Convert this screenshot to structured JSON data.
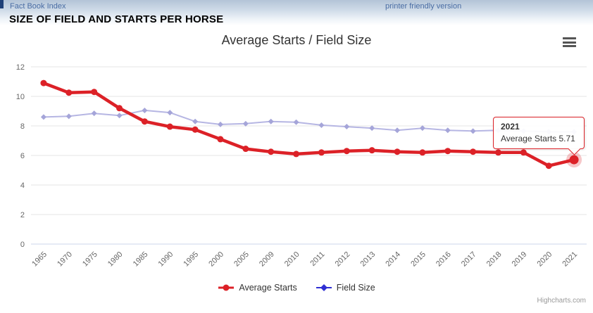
{
  "header": {
    "left_link": "Fact Book Index",
    "right_link": "printer friendly version",
    "page_title": "SIZE OF FIELD AND STARTS PER HORSE"
  },
  "chart_data": {
    "type": "line",
    "title": "Average Starts / Field Size",
    "categories": [
      "1965",
      "1970",
      "1975",
      "1980",
      "1985",
      "1990",
      "1995",
      "2000",
      "2005",
      "2009",
      "2010",
      "2011",
      "2012",
      "2013",
      "2014",
      "2015",
      "2016",
      "2017",
      "2018",
      "2019",
      "2020",
      "2021"
    ],
    "series": [
      {
        "name": "Average Starts",
        "color": "#dc2127",
        "plot_color": "#dc2127",
        "marker": "circle",
        "line_width": 4.5,
        "highlight_index": 21,
        "values": [
          10.9,
          10.25,
          10.3,
          9.2,
          8.3,
          7.95,
          7.75,
          7.1,
          6.45,
          6.25,
          6.1,
          6.2,
          6.3,
          6.35,
          6.25,
          6.2,
          6.3,
          6.25,
          6.2,
          6.2,
          5.3,
          5.71
        ]
      },
      {
        "name": "Field Size",
        "color": "#2f2fd3",
        "plot_color": "#b6b6e3",
        "marker_color": "#a5a5d9",
        "marker": "diamond",
        "line_width": 2,
        "values": [
          8.6,
          8.65,
          8.85,
          8.7,
          9.05,
          8.9,
          8.3,
          8.1,
          8.15,
          8.3,
          8.25,
          8.05,
          7.95,
          7.85,
          7.7,
          7.85,
          7.7,
          7.65,
          7.7,
          7.65,
          7.6,
          7.6
        ]
      }
    ],
    "ylim": [
      0,
      2,
      12
    ],
    "ymin": 0,
    "ymax": 12,
    "ytick_interval": 2,
    "grid": true,
    "legend_position": "bottom",
    "grid_color": "#e6e6e6",
    "axis_line_color": "#ccd6eb"
  },
  "tooltip": {
    "year": "2021",
    "text": "Average Starts 5.71",
    "border_color": "#dc2127"
  },
  "credits": "Highcharts.com"
}
